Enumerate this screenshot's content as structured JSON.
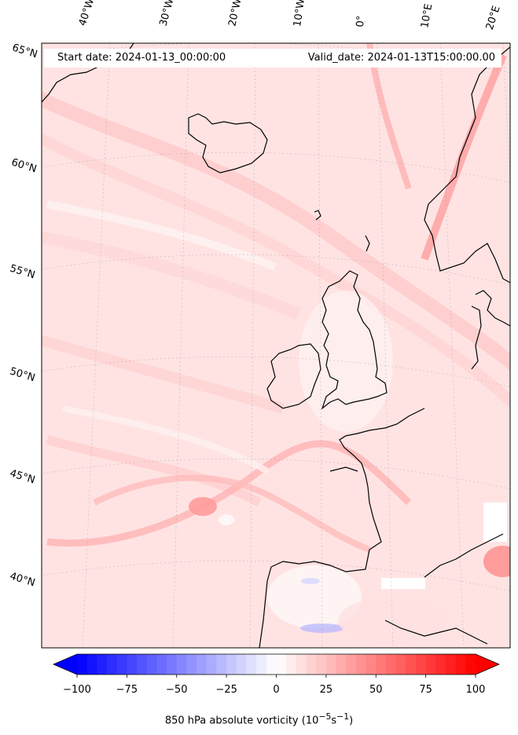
{
  "map": {
    "start_date": "Start date: 2024-01-13_00:00:00",
    "valid_date": "Valid_date: 2024-01-13T15:00:00.00",
    "lon_labels": [
      "40°W",
      "30°W",
      "20°W",
      "10°W",
      "0°",
      "10°E",
      "20°E"
    ],
    "lat_labels": [
      "65°N",
      "60°N",
      "55°N",
      "50°N",
      "45°N",
      "40°N"
    ],
    "field": "850 hPa absolute vorticity"
  },
  "colorbar": {
    "label": "850 hPa absolute vorticity (10",
    "label_exp1": "−5",
    "label_mid": "s",
    "label_exp2": "−1",
    "label_end": ")",
    "ticks": [
      "−100",
      "−75",
      "−50",
      "−25",
      "0",
      "25",
      "50",
      "75",
      "100"
    ],
    "min": -100,
    "max": 100,
    "levels": 40,
    "colormap": "bwr",
    "low_color": "#0000ff",
    "mid_color": "#ffffff",
    "high_color": "#ff0000"
  }
}
